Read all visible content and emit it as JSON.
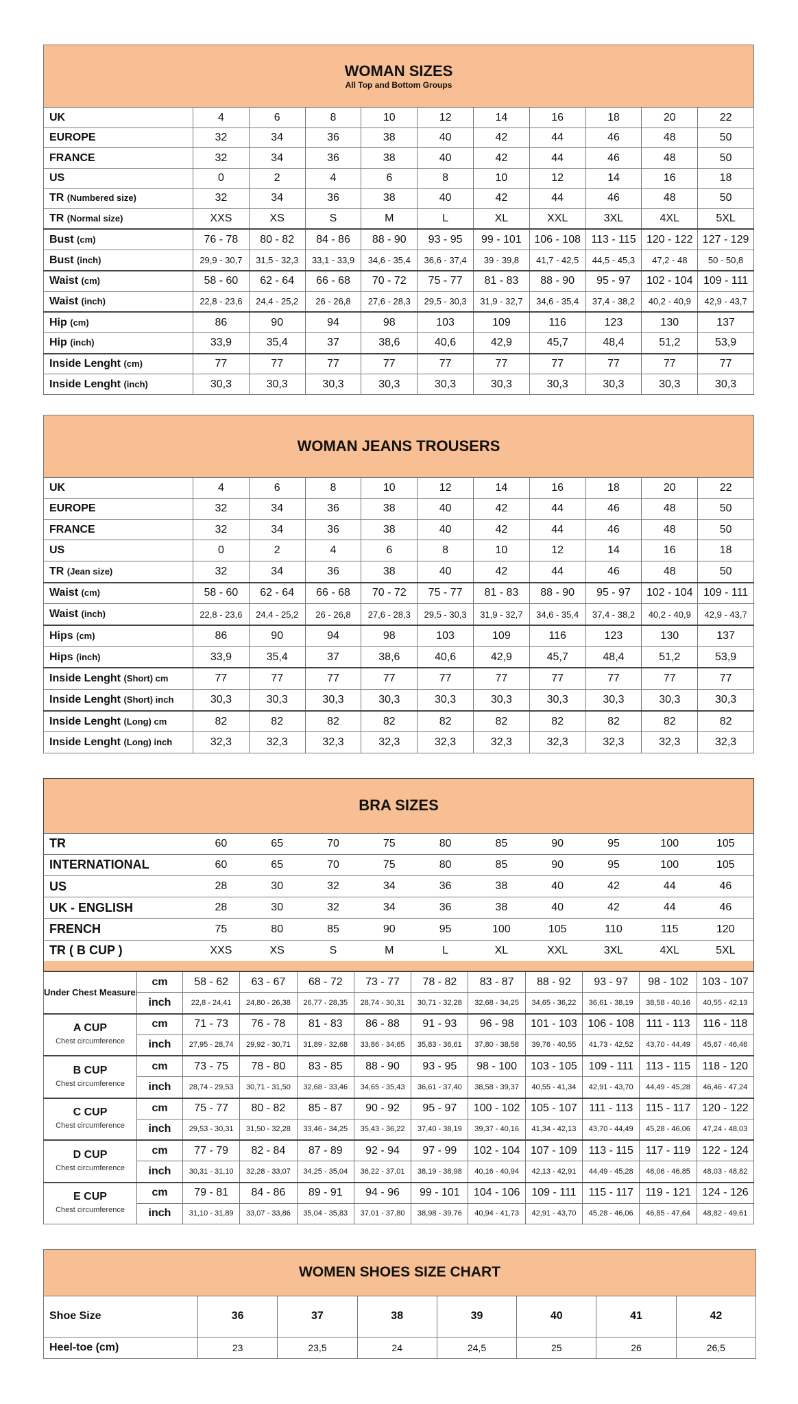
{
  "woman_sizes": {
    "title": "WOMAN SIZES",
    "subtitle": "All Top and Bottom Groups",
    "rows": [
      {
        "label": "UK",
        "unit": "",
        "values": [
          "4",
          "6",
          "8",
          "10",
          "12",
          "14",
          "16",
          "18",
          "20",
          "22"
        ]
      },
      {
        "label": "EUROPE",
        "unit": "",
        "values": [
          "32",
          "34",
          "36",
          "38",
          "40",
          "42",
          "44",
          "46",
          "48",
          "50"
        ]
      },
      {
        "label": "FRANCE",
        "unit": "",
        "values": [
          "32",
          "34",
          "36",
          "38",
          "40",
          "42",
          "44",
          "46",
          "48",
          "50"
        ]
      },
      {
        "label": "US",
        "unit": "",
        "values": [
          "0",
          "2",
          "4",
          "6",
          "8",
          "10",
          "12",
          "14",
          "16",
          "18"
        ]
      },
      {
        "label": "TR",
        "unit": "(Numbered size)",
        "values": [
          "32",
          "34",
          "36",
          "38",
          "40",
          "42",
          "44",
          "46",
          "48",
          "50"
        ]
      },
      {
        "label": "TR",
        "unit": "(Normal size)",
        "values": [
          "XXS",
          "XS",
          "S",
          "M",
          "L",
          "XL",
          "XXL",
          "3XL",
          "4XL",
          "5XL"
        ]
      },
      {
        "label": "Bust",
        "unit": "(cm)",
        "values": [
          "76 - 78",
          "80 - 82",
          "84 - 86",
          "88 - 90",
          "93 - 95",
          "99 - 101",
          "106 - 108",
          "113 - 115",
          "120 - 122",
          "127 - 129"
        ]
      },
      {
        "label": "Bust",
        "unit": "(inch)",
        "values": [
          "29,9 - 30,7",
          "31,5 - 32,3",
          "33,1 - 33,9",
          "34,6 - 35,4",
          "36,6 - 37,4",
          "39 - 39,8",
          "41,7 - 42,5",
          "44,5 - 45,3",
          "47,2 - 48",
          "50 - 50,8"
        ]
      },
      {
        "label": "Waist",
        "unit": "(cm)",
        "values": [
          "58 - 60",
          "62 - 64",
          "66 - 68",
          "70 - 72",
          "75 - 77",
          "81 - 83",
          "88 - 90",
          "95 - 97",
          "102 - 104",
          "109 - 111"
        ]
      },
      {
        "label": "Waist",
        "unit": "(inch)",
        "values": [
          "22,8 - 23,6",
          "24,4 - 25,2",
          "26 - 26,8",
          "27,6 - 28,3",
          "29,5 - 30,3",
          "31,9 - 32,7",
          "34,6 - 35,4",
          "37,4 - 38,2",
          "40,2 - 40,9",
          "42,9 - 43,7"
        ]
      },
      {
        "label": "Hip",
        "unit": "(cm)",
        "values": [
          "86",
          "90",
          "94",
          "98",
          "103",
          "109",
          "116",
          "123",
          "130",
          "137"
        ]
      },
      {
        "label": "Hip",
        "unit": "(inch)",
        "values": [
          "33,9",
          "35,4",
          "37",
          "38,6",
          "40,6",
          "42,9",
          "45,7",
          "48,4",
          "51,2",
          "53,9"
        ]
      },
      {
        "label": "Inside Lenght",
        "unit": "(cm)",
        "values": [
          "77",
          "77",
          "77",
          "77",
          "77",
          "77",
          "77",
          "77",
          "77",
          "77"
        ]
      },
      {
        "label": "Inside Lenght",
        "unit": "(inch)",
        "values": [
          "30,3",
          "30,3",
          "30,3",
          "30,3",
          "30,3",
          "30,3",
          "30,3",
          "30,3",
          "30,3",
          "30,3"
        ]
      }
    ]
  },
  "jeans": {
    "title": "WOMAN JEANS TROUSERS",
    "rows": [
      {
        "label": "UK",
        "unit": "",
        "values": [
          "4",
          "6",
          "8",
          "10",
          "12",
          "14",
          "16",
          "18",
          "20",
          "22"
        ]
      },
      {
        "label": "EUROPE",
        "unit": "",
        "values": [
          "32",
          "34",
          "36",
          "38",
          "40",
          "42",
          "44",
          "46",
          "48",
          "50"
        ]
      },
      {
        "label": "FRANCE",
        "unit": "",
        "values": [
          "32",
          "34",
          "36",
          "38",
          "40",
          "42",
          "44",
          "46",
          "48",
          "50"
        ]
      },
      {
        "label": "US",
        "unit": "",
        "values": [
          "0",
          "2",
          "4",
          "6",
          "8",
          "10",
          "12",
          "14",
          "16",
          "18"
        ]
      },
      {
        "label": "TR",
        "unit": "(Jean size)",
        "values": [
          "32",
          "34",
          "36",
          "38",
          "40",
          "42",
          "44",
          "46",
          "48",
          "50"
        ]
      },
      {
        "label": "Waist",
        "unit": "(cm)",
        "values": [
          "58 - 60",
          "62 - 64",
          "66 - 68",
          "70 - 72",
          "75 - 77",
          "81 - 83",
          "88 - 90",
          "95 - 97",
          "102 - 104",
          "109 - 111"
        ]
      },
      {
        "label": "Waist",
        "unit": "(inch)",
        "values": [
          "22,8 - 23,6",
          "24,4 - 25,2",
          "26 - 26,8",
          "27,6 - 28,3",
          "29,5 - 30,3",
          "31,9 - 32,7",
          "34,6 - 35,4",
          "37,4 - 38,2",
          "40,2 - 40,9",
          "42,9 - 43,7"
        ]
      },
      {
        "label": "Hips",
        "unit": "(cm)",
        "values": [
          "86",
          "90",
          "94",
          "98",
          "103",
          "109",
          "116",
          "123",
          "130",
          "137"
        ]
      },
      {
        "label": "Hips",
        "unit": "(inch)",
        "values": [
          "33,9",
          "35,4",
          "37",
          "38,6",
          "40,6",
          "42,9",
          "45,7",
          "48,4",
          "51,2",
          "53,9"
        ]
      },
      {
        "label": "Inside Lenght",
        "unit": "(Short) cm",
        "values": [
          "77",
          "77",
          "77",
          "77",
          "77",
          "77",
          "77",
          "77",
          "77",
          "77"
        ]
      },
      {
        "label": "Inside Lenght",
        "unit": "(Short) inch",
        "values": [
          "30,3",
          "30,3",
          "30,3",
          "30,3",
          "30,3",
          "30,3",
          "30,3",
          "30,3",
          "30,3",
          "30,3"
        ]
      },
      {
        "label": "Inside Lenght",
        "unit": "(Long) cm",
        "values": [
          "82",
          "82",
          "82",
          "82",
          "82",
          "82",
          "82",
          "82",
          "82",
          "82"
        ]
      },
      {
        "label": "Inside Lenght",
        "unit": "(Long) inch",
        "values": [
          "32,3",
          "32,3",
          "32,3",
          "32,3",
          "32,3",
          "32,3",
          "32,3",
          "32,3",
          "32,3",
          "32,3"
        ]
      }
    ]
  },
  "bra": {
    "title": "BRA SIZES",
    "rows": [
      {
        "label": "TR",
        "values": [
          "60",
          "65",
          "70",
          "75",
          "80",
          "85",
          "90",
          "95",
          "100",
          "105"
        ]
      },
      {
        "label": "INTERNATIONAL",
        "values": [
          "60",
          "65",
          "70",
          "75",
          "80",
          "85",
          "90",
          "95",
          "100",
          "105"
        ]
      },
      {
        "label": "US",
        "values": [
          "28",
          "30",
          "32",
          "34",
          "36",
          "38",
          "40",
          "42",
          "44",
          "46"
        ]
      },
      {
        "label": "UK - ENGLISH",
        "values": [
          "28",
          "30",
          "32",
          "34",
          "36",
          "38",
          "40",
          "42",
          "44",
          "46"
        ]
      },
      {
        "label": "FRENCH",
        "values": [
          "75",
          "80",
          "85",
          "90",
          "95",
          "100",
          "105",
          "110",
          "115",
          "120"
        ]
      },
      {
        "label": "TR ( B CUP )",
        "values": [
          "XXS",
          "XS",
          "S",
          "M",
          "L",
          "XL",
          "XXL",
          "3XL",
          "4XL",
          "5XL"
        ]
      }
    ],
    "cups": [
      {
        "label": "Under Chest Measurement",
        "sub": "",
        "cm": [
          "58 - 62",
          "63 - 67",
          "68 - 72",
          "73 - 77",
          "78 - 82",
          "83 - 87",
          "88 - 92",
          "93 - 97",
          "98 - 102",
          "103 - 107"
        ],
        "inch": [
          "22,8 - 24,41",
          "24,80 - 26,38",
          "26,77 - 28,35",
          "28,74 - 30,31",
          "30,71 - 32,28",
          "32,68 - 34,25",
          "34,65 - 36,22",
          "36,61 - 38,19",
          "38,58 - 40,16",
          "40,55 - 42,13"
        ]
      },
      {
        "label": "A CUP",
        "sub": "Chest circumference",
        "cm": [
          "71 - 73",
          "76 - 78",
          "81 - 83",
          "86 - 88",
          "91 - 93",
          "96 - 98",
          "101 - 103",
          "106 - 108",
          "111 - 113",
          "116 - 118"
        ],
        "inch": [
          "27,95 - 28,74",
          "29,92 - 30,71",
          "31,89 - 32,68",
          "33,86 - 34,65",
          "35,83 - 36,61",
          "37,80 - 38,58",
          "39,76 - 40,55",
          "41,73 - 42,52",
          "43,70 - 44,49",
          "45,67 - 46,46"
        ]
      },
      {
        "label": "B CUP",
        "sub": "Chest circumference",
        "cm": [
          "73 - 75",
          "78 - 80",
          "83 - 85",
          "88 - 90",
          "93 - 95",
          "98 - 100",
          "103 - 105",
          "109 - 111",
          "113 - 115",
          "118 - 120"
        ],
        "inch": [
          "28,74 - 29,53",
          "30,71 - 31,50",
          "32,68 - 33,46",
          "34,65 - 35,43",
          "36,61 - 37,40",
          "38,58 - 39,37",
          "40,55 - 41,34",
          "42,91 - 43,70",
          "44,49 - 45,28",
          "46,46 - 47,24"
        ]
      },
      {
        "label": "C CUP",
        "sub": "Chest circumference",
        "cm": [
          "75 - 77",
          "80 - 82",
          "85 - 87",
          "90 - 92",
          "95 - 97",
          "100 - 102",
          "105 - 107",
          "111 - 113",
          "115 - 117",
          "120 - 122"
        ],
        "inch": [
          "29,53 - 30,31",
          "31,50 - 32,28",
          "33,46 - 34,25",
          "35,43 - 36,22",
          "37,40 - 38,19",
          "39,37 - 40,16",
          "41,34 - 42,13",
          "43,70 - 44,49",
          "45,28 - 46,06",
          "47,24 - 48,03"
        ]
      },
      {
        "label": "D CUP",
        "sub": "Chest circumference",
        "cm": [
          "77 - 79",
          "82 - 84",
          "87 - 89",
          "92 - 94",
          "97 - 99",
          "102 - 104",
          "107 - 109",
          "113 - 115",
          "117 - 119",
          "122 - 124"
        ],
        "inch": [
          "30,31 - 31,10",
          "32,28 - 33,07",
          "34,25 - 35,04",
          "36,22 - 37,01",
          "38,19 - 38,98",
          "40,16 - 40,94",
          "42,13 - 42,91",
          "44,49 - 45,28",
          "46,06 - 46,85",
          "48,03 - 48,82"
        ]
      },
      {
        "label": "E CUP",
        "sub": "Chest circumference",
        "cm": [
          "79 - 81",
          "84 - 86",
          "89 - 91",
          "94 - 96",
          "99 - 101",
          "104 - 106",
          "109 - 111",
          "115 - 117",
          "119 - 121",
          "124 - 126"
        ],
        "inch": [
          "31,10 - 31,89",
          "33,07 - 33,86",
          "35,04 - 35,83",
          "37,01 - 37,80",
          "38,98 - 39,76",
          "40,94 - 41,73",
          "42,91 - 43,70",
          "45,28 - 46,06",
          "46,85 - 47,64",
          "48,82 - 49,61"
        ]
      }
    ],
    "unit_cm": "cm",
    "unit_inch": "inch"
  },
  "shoes": {
    "title": "WOMEN SHOES SIZE CHART",
    "rows": [
      {
        "label": "Shoe Size",
        "values": [
          "36",
          "37",
          "38",
          "39",
          "40",
          "41",
          "42"
        ]
      },
      {
        "label": "Heel-toe (cm)",
        "values": [
          "23",
          "23,5",
          "24",
          "24,5",
          "25",
          "26",
          "26,5"
        ]
      }
    ]
  },
  "colors": {
    "header": "#f7bf93",
    "border": "#444444"
  }
}
